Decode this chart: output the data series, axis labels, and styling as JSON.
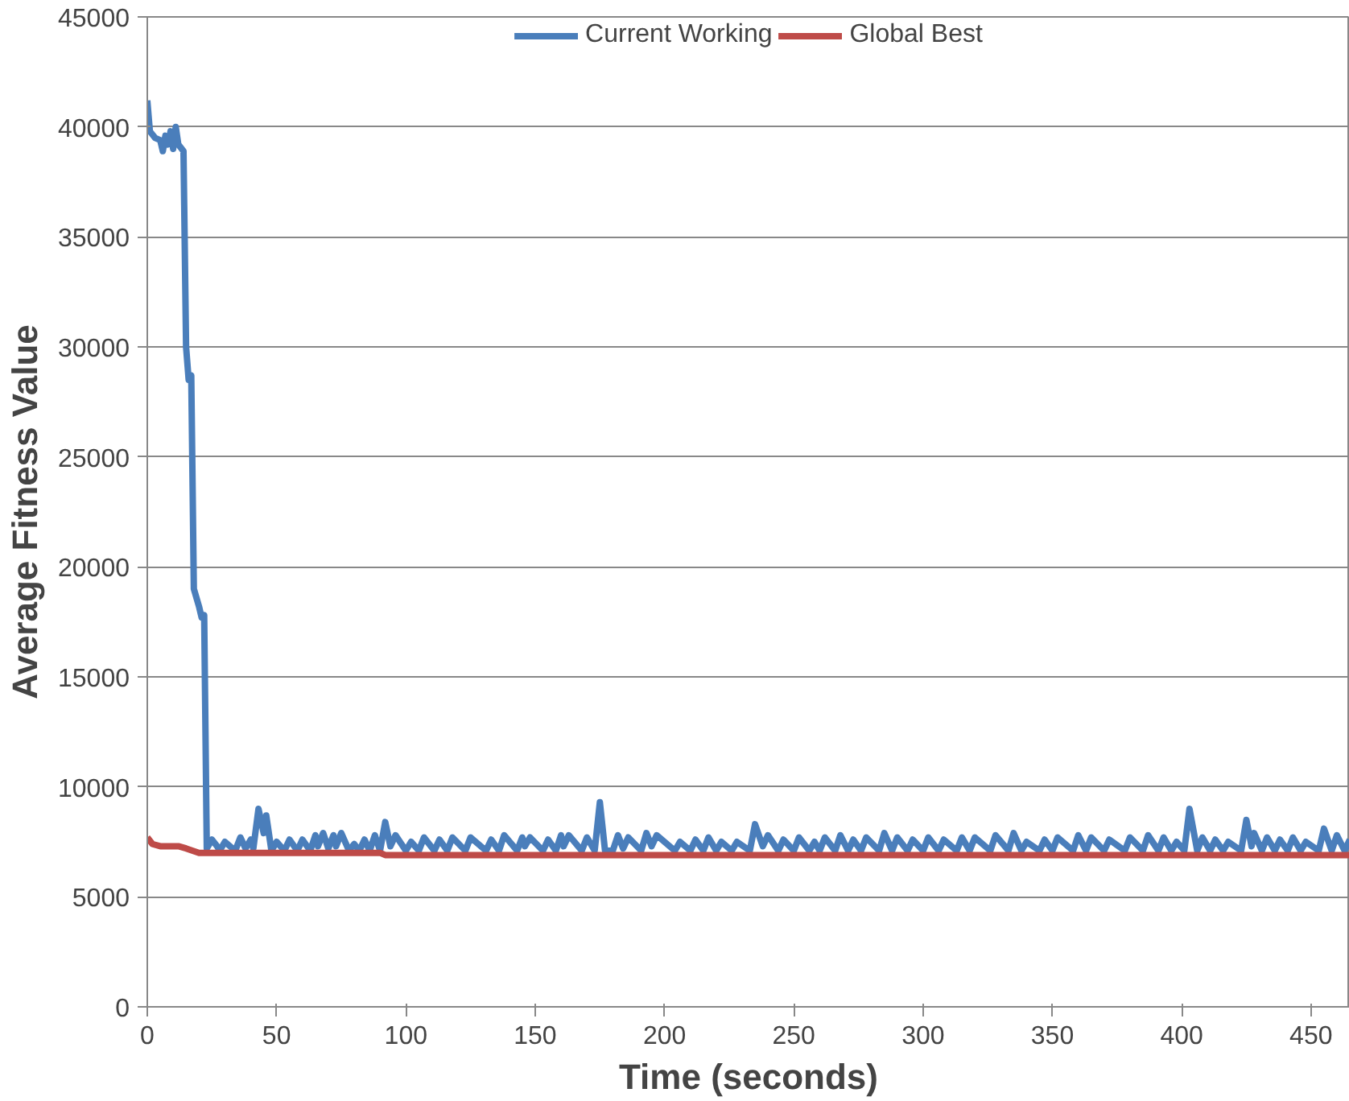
{
  "chart_data": {
    "type": "line",
    "xlabel": "Time (seconds)",
    "ylabel": "Average Fitness Value",
    "xlim": [
      0,
      465
    ],
    "xticks": [
      0,
      50,
      100,
      150,
      200,
      250,
      300,
      350,
      400,
      450
    ],
    "ylim": [
      0,
      45000
    ],
    "yticks": [
      0,
      5000,
      10000,
      15000,
      20000,
      25000,
      30000,
      35000,
      40000,
      45000
    ],
    "grid": "y",
    "legend": "top",
    "marker": "none",
    "line_style": "solid",
    "series": [
      {
        "name": "Current Working",
        "color": "#4a7ebb",
        "x": [
          0,
          1,
          3,
          5,
          6,
          7,
          8,
          9,
          10,
          11,
          12,
          14,
          15,
          16,
          17,
          18,
          20,
          21,
          22,
          23,
          25,
          27,
          28,
          30,
          34,
          36,
          38,
          40,
          41,
          43,
          45,
          46,
          48,
          50,
          53,
          55,
          58,
          60,
          63,
          65,
          66,
          68,
          70,
          72,
          73,
          75,
          78,
          80,
          82,
          84,
          86,
          88,
          90,
          92,
          94,
          96,
          100,
          102,
          105,
          107,
          111,
          113,
          116,
          118,
          123,
          125,
          131,
          133,
          136,
          138,
          143,
          145,
          146,
          148,
          153,
          155,
          158,
          160,
          161,
          163,
          168,
          170,
          173,
          175,
          177,
          180,
          182,
          184,
          186,
          191,
          193,
          195,
          197,
          204,
          206,
          210,
          212,
          215,
          217,
          220,
          222,
          226,
          228,
          233,
          235,
          238,
          240,
          244,
          246,
          250,
          252,
          256,
          258,
          260,
          262,
          266,
          268,
          271,
          273,
          276,
          278,
          283,
          285,
          288,
          290,
          294,
          296,
          300,
          302,
          306,
          308,
          313,
          315,
          318,
          320,
          326,
          328,
          333,
          335,
          338,
          340,
          345,
          347,
          350,
          352,
          358,
          360,
          363,
          365,
          370,
          372,
          378,
          380,
          385,
          387,
          391,
          393,
          396,
          398,
          401,
          403,
          406,
          408,
          411,
          413,
          416,
          418,
          423,
          425,
          427,
          428,
          431,
          433,
          436,
          438,
          441,
          443,
          446,
          448,
          453,
          455,
          458,
          460,
          463,
          465
        ],
        "values": [
          41200,
          39800,
          39500,
          39400,
          38900,
          39600,
          39200,
          39800,
          39000,
          40000,
          39200,
          38900,
          30000,
          28500,
          28700,
          19000,
          18200,
          17700,
          17800,
          7200,
          7600,
          7300,
          7100,
          7500,
          7100,
          7700,
          7200,
          7600,
          7200,
          9000,
          7900,
          8700,
          7100,
          7500,
          7100,
          7600,
          7100,
          7600,
          7100,
          7800,
          7300,
          7900,
          7200,
          7800,
          7300,
          7900,
          7100,
          7400,
          7100,
          7600,
          7100,
          7800,
          7100,
          8400,
          7300,
          7800,
          7100,
          7500,
          7100,
          7700,
          7100,
          7600,
          7100,
          7700,
          7100,
          7700,
          7100,
          7600,
          7100,
          7800,
          7100,
          7700,
          7300,
          7700,
          7100,
          7600,
          7100,
          7800,
          7300,
          7800,
          7100,
          7700,
          7100,
          9300,
          7100,
          7100,
          7800,
          7200,
          7700,
          7100,
          7900,
          7300,
          7800,
          7100,
          7500,
          7100,
          7600,
          7100,
          7700,
          7100,
          7500,
          7100,
          7500,
          7100,
          8300,
          7300,
          7800,
          7100,
          7600,
          7100,
          7700,
          7100,
          7500,
          7100,
          7700,
          7100,
          7800,
          7100,
          7600,
          7100,
          7700,
          7100,
          7900,
          7100,
          7700,
          7100,
          7600,
          7100,
          7700,
          7100,
          7600,
          7100,
          7700,
          7100,
          7700,
          7100,
          7800,
          7100,
          7900,
          7100,
          7500,
          7100,
          7600,
          7100,
          7700,
          7100,
          7800,
          7100,
          7700,
          7100,
          7600,
          7100,
          7700,
          7100,
          7800,
          7100,
          7700,
          7100,
          7500,
          7100,
          9000,
          7100,
          7700,
          7100,
          7600,
          7100,
          7500,
          7100,
          8500,
          7300,
          7900,
          7100,
          7700,
          7100,
          7600,
          7100,
          7700,
          7100,
          7500,
          7100,
          8100,
          7100,
          7800,
          7100,
          7600
        ]
      },
      {
        "name": "Global Best",
        "color": "#be4b48",
        "x": [
          0,
          2,
          5,
          12,
          15,
          20,
          90,
          92,
          465
        ],
        "values": [
          7700,
          7400,
          7300,
          7300,
          7200,
          7000,
          7000,
          6900,
          6900
        ]
      }
    ]
  }
}
